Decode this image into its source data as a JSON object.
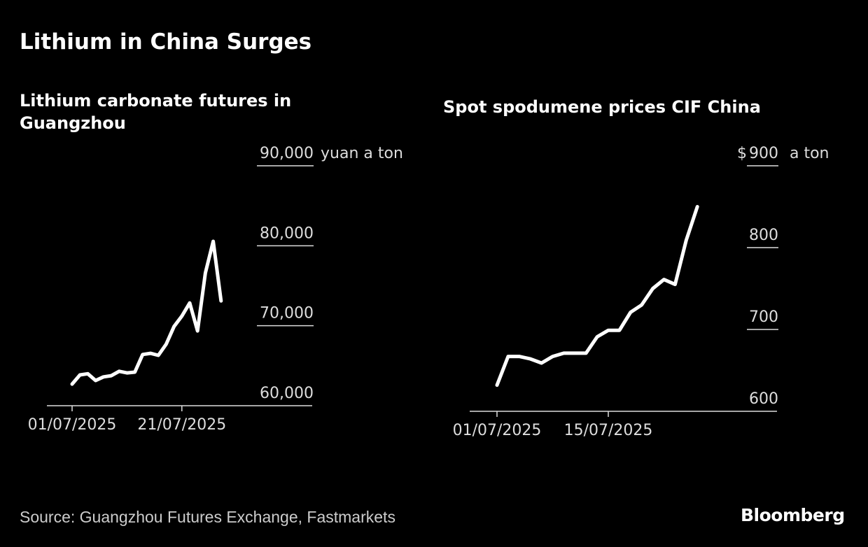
{
  "title": "Lithium in China Surges",
  "source": "Source: Guangzhou Futures Exchange, Fastmarkets",
  "logo": "Bloomberg",
  "chart_data": [
    {
      "type": "line",
      "title": "Lithium carbonate futures in Guangzhou",
      "unit_label": "yuan a ton",
      "y_ticks": [
        "60,000",
        "70,000",
        "80,000",
        "90,000"
      ],
      "y_tick_values": [
        60000,
        70000,
        80000,
        90000
      ],
      "ylim": [
        60000,
        90000
      ],
      "x_tick_labels": [
        "01/07/2025",
        "21/07/2025"
      ],
      "x_tick_indices": [
        0,
        14
      ],
      "x": [
        "01/07",
        "02/07",
        "03/07",
        "04/07",
        "07/07",
        "08/07",
        "09/07",
        "10/07",
        "11/07",
        "14/07",
        "15/07",
        "16/07",
        "17/07",
        "18/07",
        "21/07",
        "22/07",
        "23/07",
        "24/07",
        "25/07",
        "28/07"
      ],
      "values": [
        62700,
        63850,
        64000,
        63150,
        63600,
        63750,
        64300,
        64100,
        64200,
        66400,
        66550,
        66300,
        67700,
        69900,
        71200,
        72850,
        69350,
        76600,
        80550,
        73100
      ]
    },
    {
      "type": "line",
      "title": "Spot spodumene prices CIF China",
      "unit_prefix": "$",
      "unit_label": "a ton",
      "y_ticks": [
        "600",
        "700",
        "800",
        "900"
      ],
      "y_tick_values": [
        600,
        700,
        800,
        900
      ],
      "ylim": [
        600,
        900
      ],
      "x_tick_labels": [
        "01/07/2025",
        "15/07/2025"
      ],
      "x_tick_indices": [
        0,
        10
      ],
      "x": [
        "01/07",
        "02/07",
        "03/07",
        "04/07",
        "07/07",
        "08/07",
        "09/07",
        "10/07",
        "11/07",
        "14/07",
        "15/07",
        "16/07",
        "17/07",
        "18/07",
        "21/07",
        "22/07",
        "23/07",
        "24/07",
        "25/07"
      ],
      "values": [
        632,
        667,
        667,
        664,
        659,
        667,
        671,
        671,
        671,
        691,
        699,
        699,
        721,
        730,
        750,
        761,
        755,
        809,
        850
      ]
    }
  ]
}
